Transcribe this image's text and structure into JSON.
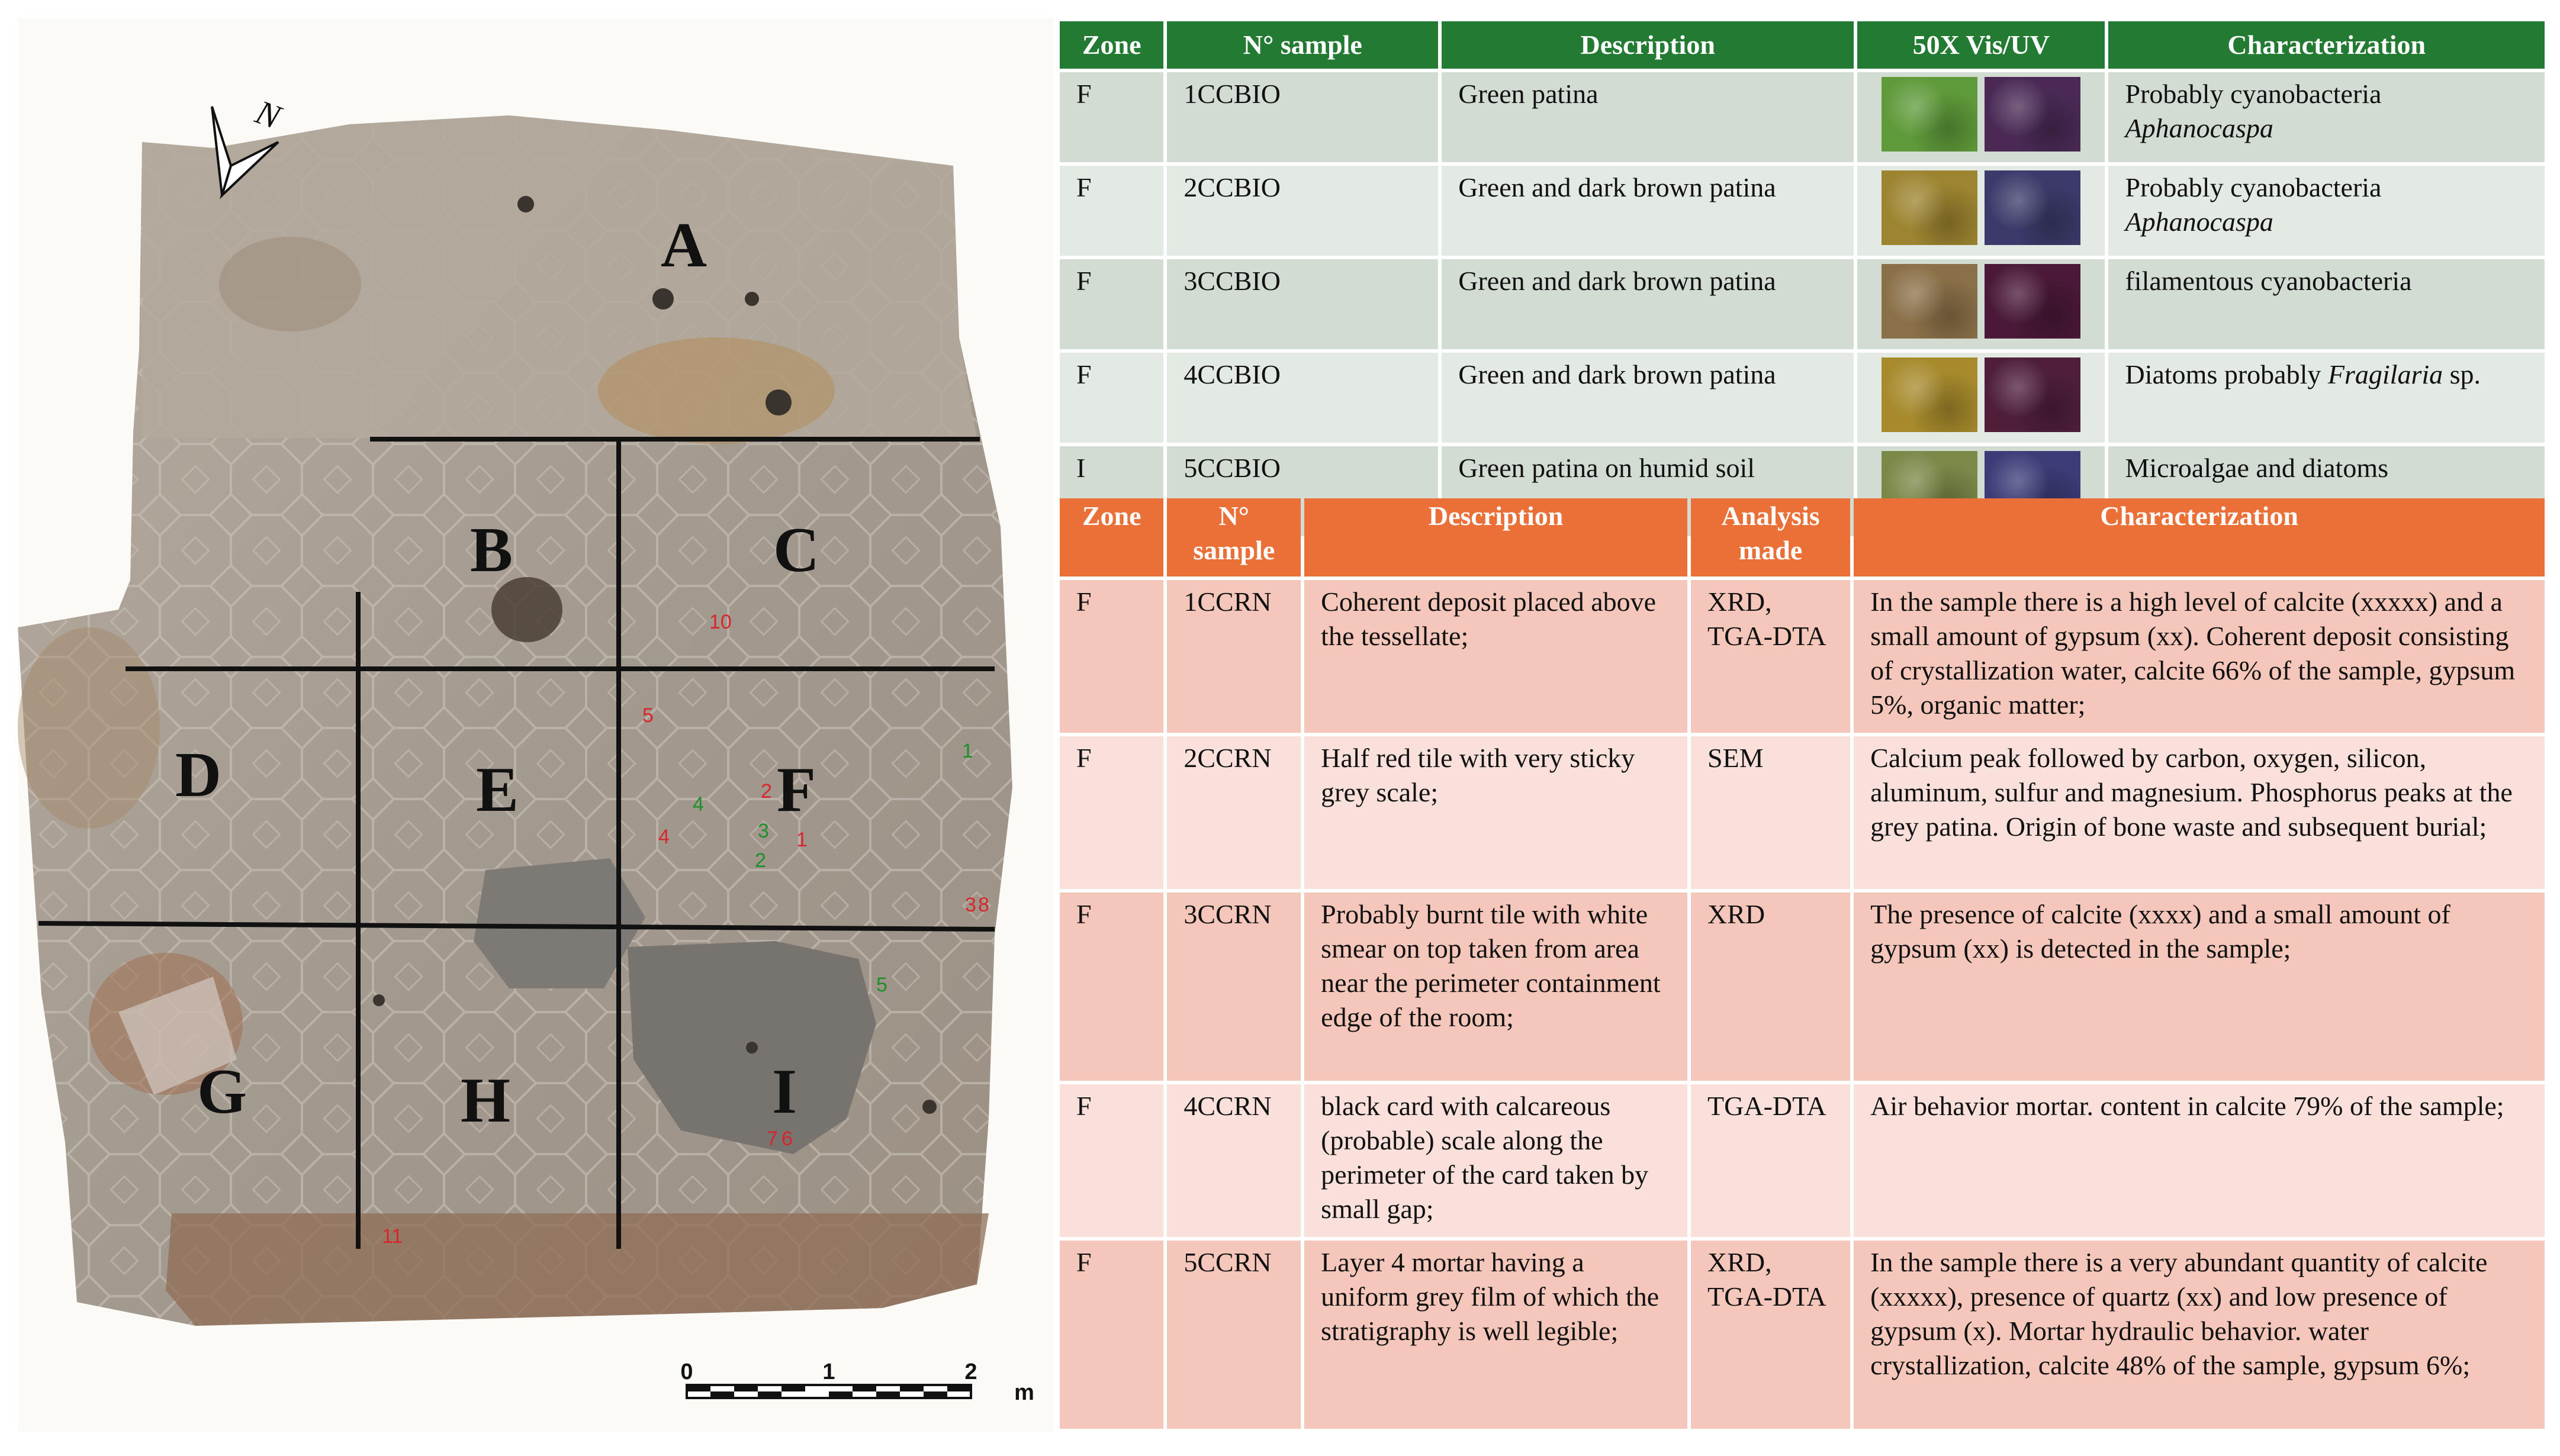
{
  "map": {
    "zones": [
      "A",
      "B",
      "C",
      "D",
      "E",
      "F",
      "G",
      "H",
      "I"
    ],
    "north_label": "N",
    "scale": {
      "labels": [
        "0",
        "1",
        "2"
      ],
      "unit": "m"
    },
    "sample_marks": {
      "red": [
        "10",
        "5",
        "2",
        "4",
        "1",
        "3",
        "8",
        "7",
        "6",
        "11"
      ],
      "green": [
        "1",
        "3",
        "2",
        "4",
        "5"
      ]
    }
  },
  "bio_table": {
    "headers": [
      "Zone",
      "N° sample",
      "Description",
      "50X Vis/UV",
      "Characterization"
    ],
    "rows": [
      {
        "zone": "F",
        "sample": "1CCBIO",
        "description": "Green patina",
        "char_line1": "Probably cyanobacteria",
        "char_line2": "Aphanocaspa",
        "vis_color": "#5f9a3a",
        "uv_color": "#4a2a55"
      },
      {
        "zone": "F",
        "sample": "2CCBIO",
        "description": "Green and dark brown patina",
        "char_line1": "Probably cyanobacteria",
        "char_line2": "Aphanocaspa",
        "vis_color": "#9c8430",
        "uv_color": "#3b3a6a"
      },
      {
        "zone": "F",
        "sample": "3CCBIO",
        "description": "Green and dark brown patina",
        "char_line1": "filamentous cyanobacteria",
        "char_line2": "",
        "vis_color": "#8a7048",
        "uv_color": "#4a1838"
      },
      {
        "zone": "F",
        "sample": "4CCBIO",
        "description": "Green and dark brown patina",
        "char_prefix": "Diatoms probably ",
        "char_italic": "Fragilaria",
        "char_suffix": " sp.",
        "vis_color": "#a78a2c",
        "uv_color": "#4f1f3a"
      },
      {
        "zone": "I",
        "sample": "5CCBIO",
        "description": "Green patina on humid soil",
        "char_line1": "Microalgae and diatoms",
        "char_line2": "",
        "vis_color": "#7a8848",
        "uv_color": "#3c3c78"
      }
    ]
  },
  "crn_table": {
    "headers": {
      "zone": "Zone",
      "sample_line1": "N°",
      "sample_line2": "sample",
      "description": "Description",
      "analysis_line1": "Analysis",
      "analysis_line2": "made",
      "characterization": "Characterization"
    },
    "rows": [
      {
        "zone": "F",
        "sample": "1CCRN",
        "description": "Coherent deposit placed above the tessellate;",
        "analysis": "XRD, TGA-DTA",
        "characterization": "In the sample there is a high level of calcite (xxxxx) and a small amount of gypsum (xx). Coherent deposit consisting of crystallization water, calcite 66% of the sample, gypsum 5%, organic matter;"
      },
      {
        "zone": "F",
        "sample": "2CCRN",
        "description": "Half red tile with very sticky grey scale;",
        "analysis": "SEM",
        "characterization": "Calcium peak followed by carbon, oxygen, silicon, aluminum, sulfur and magnesium. Phosphorus peaks at the grey patina. Origin of bone waste and subsequent burial;"
      },
      {
        "zone": "F",
        "sample": "3CCRN",
        "description": "Probably burnt tile with white smear on top taken from area near the perimeter containment edge of the room;",
        "analysis": "XRD",
        "characterization": "The presence of calcite (xxxx) and a small amount of gypsum (xx) is detected in the sample;"
      },
      {
        "zone": "F",
        "sample": "4CCRN",
        "description": "black card with calcareous (probable) scale along the perimeter of the card taken by small gap;",
        "analysis": "TGA-DTA",
        "characterization": "Air behavior mortar. content in calcite 79% of the sample;"
      },
      {
        "zone": "F",
        "sample": "5CCRN",
        "description": "Layer 4 mortar having a uniform grey film of which the stratigraphy is well legible;",
        "analysis": "XRD, TGA-DTA",
        "characterization": "In the sample there is a very abundant quantity of calcite (xxxxx), presence of quartz (xx) and low presence of gypsum (x). Mortar hydraulic behavior. water crystallization, calcite 48% of the sample, gypsum 6%;"
      }
    ]
  }
}
